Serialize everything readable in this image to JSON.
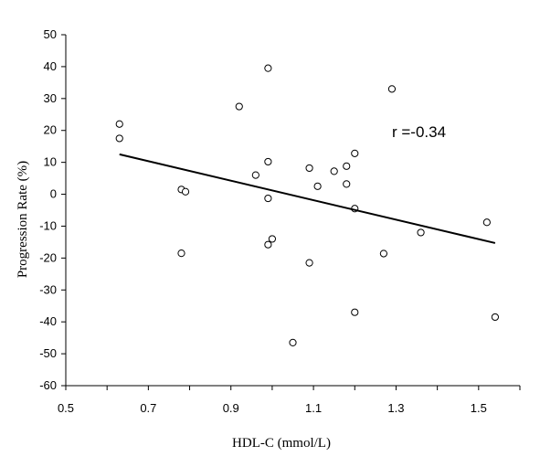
{
  "chart_data": {
    "type": "scatter",
    "title": "",
    "xlabel": "HDL-C (mmol/L)",
    "ylabel": "Progression Rate (%)",
    "xlim": [
      0.5,
      1.6
    ],
    "ylim": [
      -60,
      50
    ],
    "xticks": [
      0.5,
      0.7,
      0.9,
      1.1,
      1.3,
      1.5
    ],
    "xtick_labels": [
      "0.5",
      "0.7",
      "0.9",
      "1.1",
      "1.3",
      "1.5"
    ],
    "yticks": [
      50,
      40,
      30,
      20,
      10,
      0,
      -10,
      -20,
      -30,
      -40,
      -50,
      -60
    ],
    "ytick_labels": [
      "50",
      "40",
      "30",
      "20",
      "10",
      "0",
      "-10",
      "-20",
      "-30",
      "-40",
      "-50",
      "-60"
    ],
    "grid": false,
    "marker": "open-circle",
    "points": [
      {
        "x": 0.63,
        "y": 22
      },
      {
        "x": 0.63,
        "y": 17.5
      },
      {
        "x": 0.78,
        "y": 1.5
      },
      {
        "x": 0.79,
        "y": 0.8
      },
      {
        "x": 0.78,
        "y": -18.5
      },
      {
        "x": 0.92,
        "y": 27.5
      },
      {
        "x": 0.96,
        "y": 6
      },
      {
        "x": 0.99,
        "y": 39.5
      },
      {
        "x": 0.99,
        "y": 10.2
      },
      {
        "x": 0.99,
        "y": -1.3
      },
      {
        "x": 0.99,
        "y": -15.8
      },
      {
        "x": 1.0,
        "y": -14
      },
      {
        "x": 1.05,
        "y": -46.5
      },
      {
        "x": 1.09,
        "y": 8.2
      },
      {
        "x": 1.09,
        "y": -21.5
      },
      {
        "x": 1.11,
        "y": 2.5
      },
      {
        "x": 1.15,
        "y": 7.2
      },
      {
        "x": 1.18,
        "y": 8.8
      },
      {
        "x": 1.18,
        "y": 3.2
      },
      {
        "x": 1.2,
        "y": 12.8
      },
      {
        "x": 1.2,
        "y": -4.5
      },
      {
        "x": 1.2,
        "y": -37
      },
      {
        "x": 1.27,
        "y": -18.6
      },
      {
        "x": 1.29,
        "y": 33
      },
      {
        "x": 1.36,
        "y": -12
      },
      {
        "x": 1.52,
        "y": -8.8
      },
      {
        "x": 1.54,
        "y": -38.5
      }
    ],
    "regression_line": {
      "x1": 0.63,
      "y1": 12.5,
      "x2": 1.54,
      "y2": -15.3
    },
    "annotation": "r =-0.34"
  }
}
